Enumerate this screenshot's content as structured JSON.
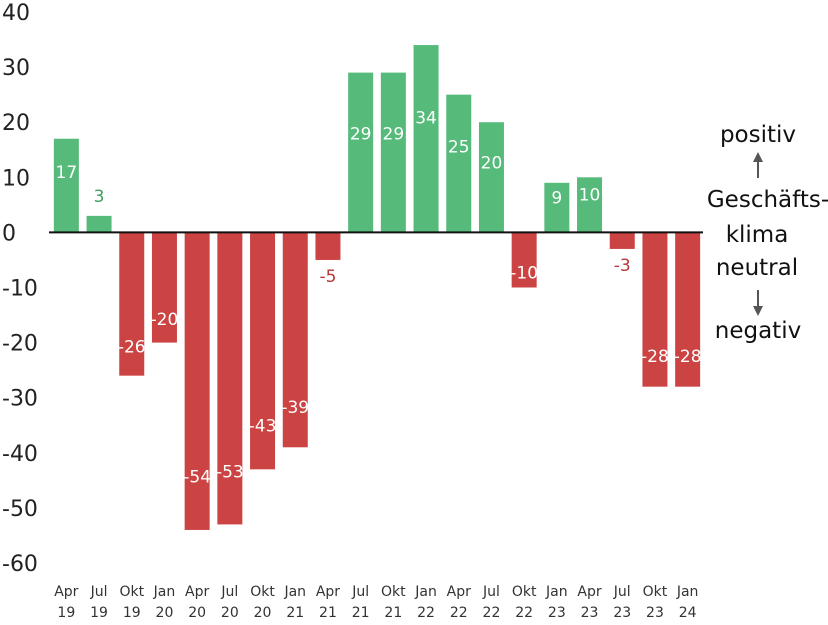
{
  "chart_data": {
    "type": "bar",
    "title": "",
    "xlabel": "",
    "ylabel": "",
    "ylim": [
      -60,
      40
    ],
    "yticks": [
      40,
      30,
      20,
      10,
      0,
      -10,
      -20,
      -30,
      -40,
      -50,
      -60
    ],
    "ytick_labels": [
      "40",
      "30",
      "20",
      "10",
      "0",
      "-10",
      "-20",
      "-30",
      "-40",
      "-50",
      "-60"
    ],
    "categories": [
      "Apr 19",
      "Jul 19",
      "Okt 19",
      "Jan 20",
      "Apr 20",
      "Jul 20",
      "Okt 20",
      "Jan 21",
      "Apr 21",
      "Jul 21",
      "Okt 21",
      "Jan 22",
      "Apr 22",
      "Jul 22",
      "Okt 22",
      "Jan 23",
      "Apr 23",
      "Jul 23",
      "Okt 23",
      "Jan 24"
    ],
    "category_lines": [
      [
        "Apr",
        "19"
      ],
      [
        "Jul",
        "19"
      ],
      [
        "Okt",
        "19"
      ],
      [
        "Jan",
        "20"
      ],
      [
        "Apr",
        "20"
      ],
      [
        "Jul",
        "20"
      ],
      [
        "Okt",
        "20"
      ],
      [
        "Jan",
        "21"
      ],
      [
        "Apr",
        "21"
      ],
      [
        "Jul",
        "21"
      ],
      [
        "Okt",
        "21"
      ],
      [
        "Jan",
        "22"
      ],
      [
        "Apr",
        "22"
      ],
      [
        "Jul",
        "22"
      ],
      [
        "Okt",
        "22"
      ],
      [
        "Jan",
        "23"
      ],
      [
        "Apr",
        "23"
      ],
      [
        "Jul",
        "23"
      ],
      [
        "Okt",
        "23"
      ],
      [
        "Jan",
        "24"
      ]
    ],
    "values": [
      17,
      3,
      -26,
      -20,
      -54,
      -53,
      -43,
      -39,
      -5,
      29,
      29,
      34,
      25,
      20,
      -10,
      9,
      10,
      -3,
      -28,
      -28
    ],
    "data_labels": [
      "17",
      "3",
      "-26",
      "-20",
      "-54",
      "-53",
      "-43",
      "-39",
      "-5",
      "29",
      "29",
      "34",
      "25",
      "20",
      "-10",
      "9",
      "10",
      "-3",
      "-28",
      "-28"
    ],
    "grid": false,
    "colors": {
      "positive": "#55ba7a",
      "negative": "#cc4343",
      "positive_label": "#3f9e62",
      "negative_label": "#b63838",
      "axis": "#111111"
    },
    "side_legend": {
      "top": "positiv",
      "middle_lines": [
        "Geschäfts-",
        "klima",
        "neutral"
      ],
      "bottom": "negativ"
    }
  }
}
